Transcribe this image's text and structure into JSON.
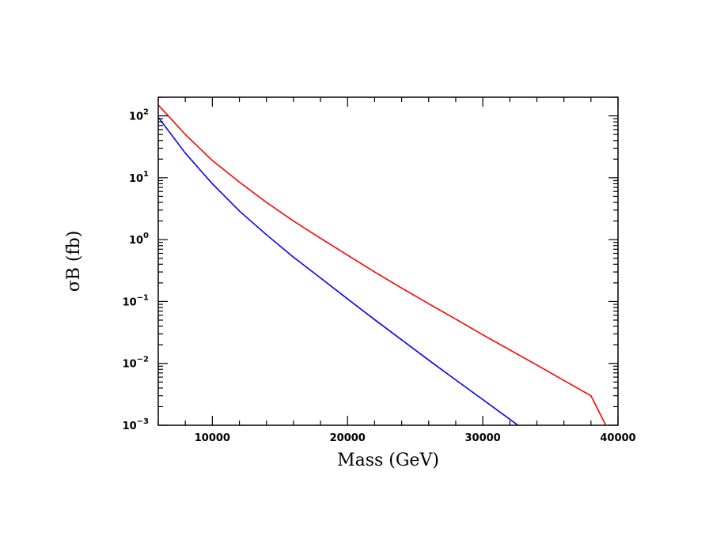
{
  "chart_data": {
    "type": "line",
    "title": "",
    "xlabel": "Mass (GeV)",
    "ylabel": "σB (fb)",
    "xlim": [
      6000,
      40000
    ],
    "ylim": [
      0.001,
      200
    ],
    "yscale": "log",
    "grid": false,
    "legend": "none",
    "x_ticks": [
      10000,
      20000,
      30000,
      40000
    ],
    "y_ticks": [
      {
        "base": "10",
        "exp": "2"
      },
      {
        "base": "10",
        "exp": "1"
      },
      {
        "base": "10",
        "exp": "0"
      },
      {
        "base": "10",
        "exp": "−1"
      },
      {
        "base": "10",
        "exp": "−2"
      },
      {
        "base": "10",
        "exp": "−3"
      }
    ],
    "series": [
      {
        "color": "#ff0000",
        "x": [
          6000,
          8000,
          10000,
          12000,
          14000,
          16000,
          18000,
          20000,
          22000,
          24000,
          26000,
          28000,
          30000,
          32000,
          34000,
          36000,
          38000,
          39100
        ],
        "y": [
          150,
          50,
          19,
          8.5,
          4.0,
          2.0,
          1.05,
          0.56,
          0.3,
          0.165,
          0.092,
          0.052,
          0.029,
          0.0165,
          0.0094,
          0.0053,
          0.003,
          0.001
        ]
      },
      {
        "color": "#0000ff",
        "x": [
          6000,
          8000,
          10000,
          12000,
          14000,
          16000,
          18000,
          20000,
          22000,
          24000,
          26000,
          28000,
          30000,
          32000,
          32600
        ],
        "y": [
          95,
          25,
          8.0,
          2.9,
          1.2,
          0.52,
          0.24,
          0.11,
          0.051,
          0.024,
          0.0113,
          0.0054,
          0.0026,
          0.00125,
          0.001
        ]
      }
    ]
  }
}
